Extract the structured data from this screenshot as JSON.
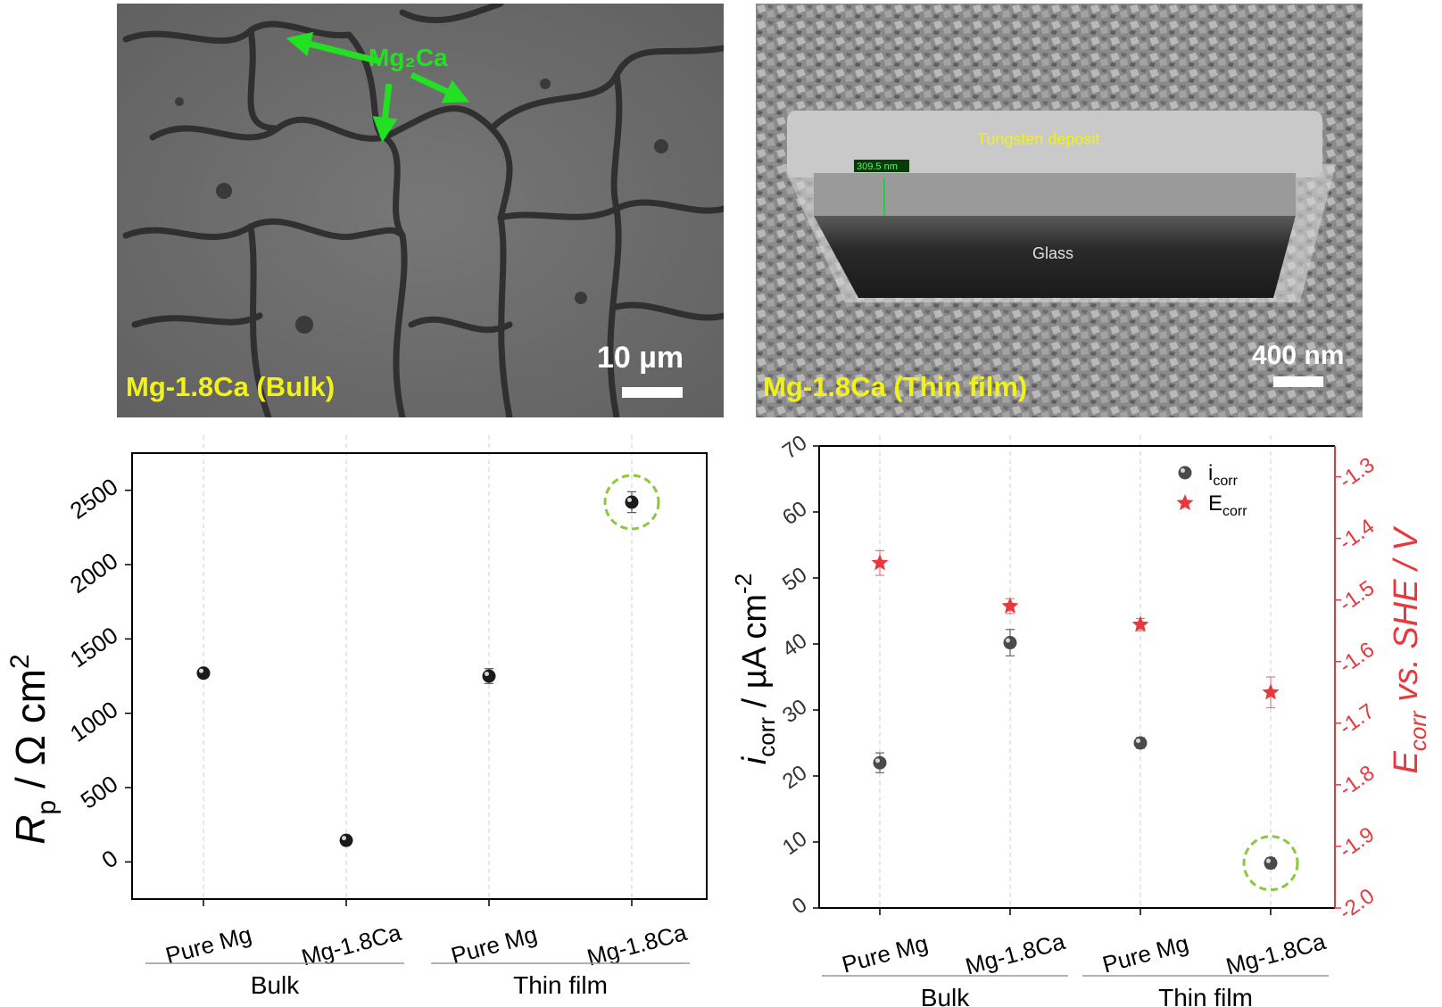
{
  "sem_bulk": {
    "label": "Mg-1.8Ca (Bulk)",
    "annotation": "Mg₂Ca",
    "scale": "10 µm"
  },
  "sem_film": {
    "label": "Mg-1.8Ca (Thin film)",
    "deposit_label": "Tungsten deposit",
    "substrate_label": "Glass",
    "thickness": "309.5 nm",
    "scale": "400 nm"
  },
  "colors": {
    "marker": "#1a1a1a",
    "marker_gray": "#4a4a4a",
    "star": "#e8383d",
    "highlight": "#8dc63f",
    "right_axis": "#e8383d"
  },
  "chart_data": [
    {
      "type": "scatter",
      "categories": [
        "Pure Mg",
        "Mg-1.8Ca",
        "Pure Mg",
        "Mg-1.8Ca"
      ],
      "groups": [
        {
          "label": "Bulk",
          "categories": [
            0,
            1
          ]
        },
        {
          "label": "Thin film",
          "categories": [
            2,
            3
          ]
        }
      ],
      "ylabel": "Rₚ / Ω cm²",
      "ylabel_main": "R",
      "ylabel_sub": "p",
      "ylabel_rest": " / Ω cm",
      "ylabel_sup": "2",
      "ylim": [
        -250,
        2750
      ],
      "yticks": [
        "0",
        "500",
        "1000",
        "1500",
        "2000",
        "2500"
      ],
      "ytick_values": [
        0,
        500,
        1000,
        1500,
        2000,
        2500
      ],
      "series": [
        {
          "values": [
            1270,
            145,
            1250,
            2420
          ],
          "errors": [
            25,
            10,
            50,
            70
          ]
        }
      ],
      "highlighted_index": 3,
      "grid": "vertical dashed at categories"
    },
    {
      "type": "scatter",
      "categories": [
        "Pure Mg",
        "Mg-1.8Ca",
        "Pure Mg",
        "Mg-1.8Ca"
      ],
      "groups": [
        {
          "label": "Bulk",
          "categories": [
            0,
            1
          ]
        },
        {
          "label": "Thin film",
          "categories": [
            2,
            3
          ]
        }
      ],
      "ylabel_left_main": "i",
      "ylabel_left_sub": "corr",
      "ylabel_left_rest": " / µA cm",
      "ylabel_left_sup": "-2",
      "ylabel_right_main": "E",
      "ylabel_right_sub": "corr",
      "ylabel_right_rest": " vs. SHE / V",
      "ylim_left": [
        0,
        70
      ],
      "yticks_left": [
        "0",
        "10",
        "20",
        "30",
        "40",
        "50",
        "60",
        "70"
      ],
      "ytick_left_values": [
        0,
        10,
        20,
        30,
        40,
        50,
        60,
        70
      ],
      "ylim_right": [
        -2.0,
        -1.25
      ],
      "yticks_right": [
        "-2.0",
        "-1.9",
        "-1.8",
        "-1.7",
        "-1.6",
        "-1.5",
        "-1.4",
        "-1.3"
      ],
      "ytick_right_values": [
        -2.0,
        -1.9,
        -1.8,
        -1.7,
        -1.6,
        -1.5,
        -1.4,
        -1.3
      ],
      "series": [
        {
          "name": "i",
          "sub": "corr",
          "axis": "left",
          "marker": "sphere",
          "values": [
            22,
            40.2,
            25,
            6.8
          ],
          "errors": [
            1.5,
            2,
            0.8,
            0.8
          ]
        },
        {
          "name": "E",
          "sub": "corr",
          "axis": "right",
          "marker": "star",
          "values": [
            -1.44,
            -1.51,
            -1.54,
            -1.65
          ],
          "errors": [
            0.02,
            0.012,
            0.01,
            0.025
          ]
        }
      ],
      "legend_position": "top-right",
      "highlighted_index": 3,
      "grid": "vertical dashed at categories"
    }
  ]
}
